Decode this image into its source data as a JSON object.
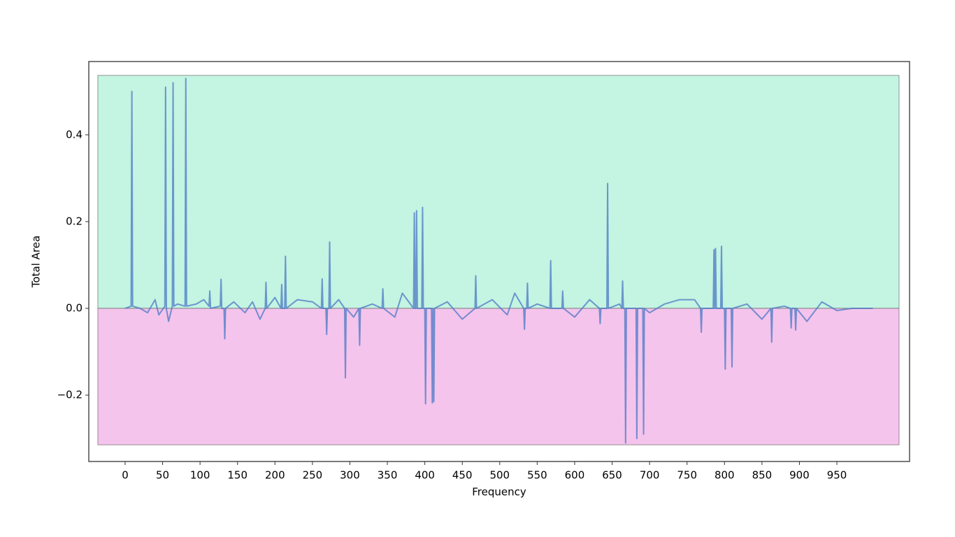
{
  "chart_data": {
    "type": "line",
    "x_label": "Frequency",
    "y_label": "Total Area",
    "xlim": [
      -48.5,
      1047
    ],
    "ylim": [
      -0.353,
      0.569
    ],
    "xticks": [
      0,
      50,
      100,
      150,
      200,
      250,
      300,
      350,
      400,
      450,
      500,
      550,
      600,
      650,
      700,
      750,
      800,
      850,
      900,
      950
    ],
    "yticks": [
      {
        "value": -0.2,
        "label": "−0.2"
      },
      {
        "value": 0,
        "label": "0.0"
      },
      0.2,
      0.4
    ],
    "band_xlim": [
      -36.4,
      1033
    ],
    "bands": [
      {
        "y": [
          0,
          0.537
        ],
        "color": "#c4f4e2"
      },
      {
        "y": [
          -0.3145,
          0
        ],
        "color": "#f4c4ec"
      }
    ],
    "series": [
      {
        "color": "#4a78c4",
        "x": [
          0,
          8,
          9,
          10,
          20,
          30,
          35,
          40,
          45,
          53,
          54,
          55,
          58,
          63,
          64,
          65,
          70,
          80,
          81,
          82,
          95,
          105,
          112,
          113,
          114,
          127,
          128,
          129,
          132,
          133,
          134,
          145,
          160,
          170,
          180,
          187,
          188,
          189,
          200,
          208,
          209,
          210,
          213,
          214,
          215,
          230,
          250,
          262,
          263,
          264,
          268,
          269,
          270,
          272,
          273,
          274,
          285,
          293,
          294,
          295,
          305,
          312,
          313,
          314,
          330,
          343,
          344,
          345,
          360,
          370,
          385,
          386,
          387,
          388,
          389,
          390,
          396,
          397,
          398,
          400,
          401,
          402,
          409,
          410,
          411,
          412,
          413,
          430,
          450,
          467,
          468,
          469,
          490,
          510,
          520,
          532,
          533,
          534,
          536,
          537,
          538,
          550,
          567,
          568,
          569,
          583,
          584,
          585,
          600,
          620,
          633,
          634,
          635,
          643,
          644,
          645,
          660,
          663,
          664,
          665,
          667,
          668,
          669,
          682,
          683,
          684,
          691,
          692,
          693,
          700,
          720,
          740,
          760,
          768,
          769,
          770,
          785,
          786,
          787,
          788,
          789,
          795,
          796,
          797,
          800,
          801,
          802,
          809,
          810,
          811,
          830,
          850,
          862,
          863,
          864,
          880,
          888,
          889,
          890,
          894,
          895,
          896,
          910,
          930,
          950,
          970,
          998
        ],
        "values": [
          0,
          0.005,
          0.5,
          0.005,
          0,
          -0.01,
          0.005,
          0.02,
          -0.015,
          0.005,
          0.51,
          0,
          -0.03,
          0.005,
          0.52,
          0.005,
          0.01,
          0.005,
          0.53,
          0.005,
          0.01,
          0.02,
          0.005,
          0.04,
          0,
          0.005,
          0.067,
          0,
          0,
          -0.07,
          0,
          0.015,
          -0.01,
          0.015,
          -0.025,
          0,
          0.06,
          0,
          0.025,
          0,
          0.055,
          0,
          0,
          0.12,
          0,
          0.02,
          0.015,
          0,
          0.068,
          0,
          0,
          -0.06,
          0,
          0,
          0.153,
          0,
          0.02,
          0,
          -0.16,
          0,
          -0.02,
          0,
          -0.085,
          0,
          0.01,
          0,
          0.045,
          0,
          -0.02,
          0.035,
          0,
          0.22,
          0,
          0,
          0.225,
          0,
          0,
          0.233,
          0,
          0,
          -0.22,
          0,
          0,
          -0.218,
          0,
          -0.215,
          0,
          0.015,
          -0.025,
          0,
          0.075,
          0,
          0.02,
          -0.015,
          0.035,
          0,
          -0.048,
          0,
          0,
          0.058,
          0,
          0.01,
          0,
          0.11,
          0,
          0,
          0.04,
          0,
          -0.02,
          0.02,
          0,
          -0.035,
          0,
          0,
          0.288,
          0,
          0.01,
          0,
          0.063,
          0,
          0,
          -0.31,
          0,
          0,
          -0.3,
          0,
          0,
          -0.29,
          0,
          -0.01,
          0.01,
          0.02,
          0.02,
          0,
          -0.055,
          0,
          0,
          0.135,
          0,
          0.138,
          0,
          0,
          0.143,
          0,
          0,
          -0.14,
          0,
          0,
          -0.135,
          0,
          0.01,
          -0.025,
          0,
          -0.078,
          0,
          0.005,
          0,
          -0.045,
          0,
          0,
          -0.05,
          0,
          -0.03,
          0.015,
          -0.005,
          0,
          0
        ]
      }
    ]
  }
}
